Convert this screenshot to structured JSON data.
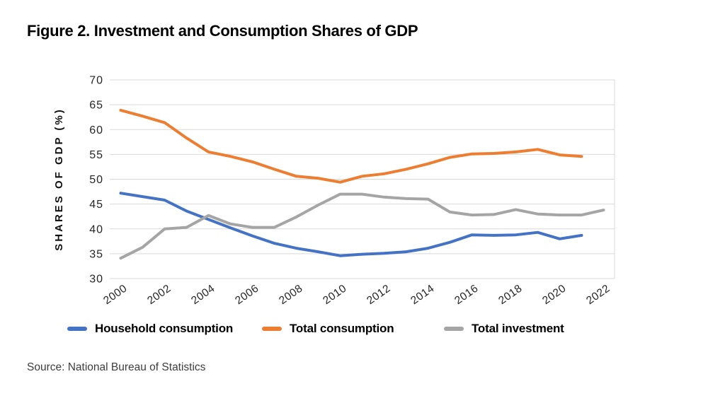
{
  "figure": {
    "title": "Figure 2. Investment and Consumption Shares of GDP",
    "source": "Source: National Bureau of Statistics"
  },
  "colors": {
    "household_line": "#4472C4",
    "total_consumption_line": "#ED7D31",
    "investment_line": "#A5A5A5",
    "gridline": "#D9D9D9",
    "tick_text": "#262626",
    "axis_title_text": "#111111"
  },
  "chart_data": {
    "type": "line",
    "title": "Figure 2. Investment and Consumption Shares of GDP",
    "xlabel": "",
    "ylabel": "SHARES OF GDP (%)",
    "ylim": [
      30,
      70
    ],
    "yticks": [
      70,
      65,
      60,
      55,
      50,
      45,
      40,
      35,
      30
    ],
    "grid": "horizontal",
    "legend_position": "bottom",
    "x_start": 2000,
    "x_end": 2022,
    "xtick_labels": [
      "2000",
      "2002",
      "2004",
      "2006",
      "2008",
      "2010",
      "2012",
      "2014",
      "2016",
      "2018",
      "2020",
      "2022"
    ],
    "series": [
      {
        "name": "Household consumption",
        "color": "#4472C4",
        "x": [
          2000,
          2001,
          2002,
          2003,
          2004,
          2005,
          2006,
          2007,
          2008,
          2009,
          2010,
          2011,
          2012,
          2013,
          2014,
          2015,
          2016,
          2017,
          2018,
          2019,
          2020,
          2021
        ],
        "values": [
          47.2,
          46.5,
          45.8,
          43.6,
          41.9,
          40.2,
          38.6,
          37.1,
          36.1,
          35.4,
          34.6,
          34.9,
          35.1,
          35.4,
          36.1,
          37.3,
          38.8,
          38.7,
          38.8,
          39.3,
          38.0,
          38.7
        ]
      },
      {
        "name": "Total consumption",
        "color": "#ED7D31",
        "x": [
          2000,
          2001,
          2002,
          2003,
          2004,
          2005,
          2006,
          2007,
          2008,
          2009,
          2010,
          2011,
          2012,
          2013,
          2014,
          2015,
          2016,
          2017,
          2018,
          2019,
          2020,
          2021
        ],
        "values": [
          63.9,
          62.7,
          61.4,
          58.3,
          55.5,
          54.6,
          53.5,
          52.0,
          50.6,
          50.2,
          49.4,
          50.6,
          51.1,
          52.0,
          53.1,
          54.4,
          55.1,
          55.2,
          55.5,
          56.0,
          54.9,
          54.6
        ]
      },
      {
        "name": "Total investment",
        "color": "#A5A5A5",
        "x": [
          2000,
          2001,
          2002,
          2003,
          2004,
          2005,
          2006,
          2007,
          2008,
          2009,
          2010,
          2011,
          2012,
          2013,
          2014,
          2015,
          2016,
          2017,
          2018,
          2019,
          2020,
          2021,
          2022
        ],
        "values": [
          34.1,
          36.3,
          40.0,
          40.3,
          42.7,
          41.0,
          40.3,
          40.3,
          42.4,
          44.8,
          47.0,
          47.0,
          46.4,
          46.1,
          46.0,
          43.4,
          42.8,
          42.9,
          43.9,
          43.0,
          42.8,
          42.8,
          43.8
        ]
      }
    ]
  }
}
